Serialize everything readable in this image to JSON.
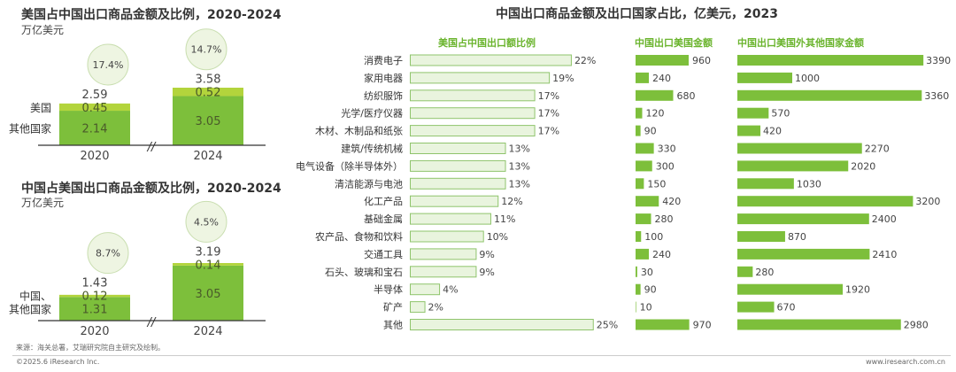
{
  "colors": {
    "main_green": "#7dbf3b",
    "light_green": "#b3d43c",
    "circle_fill": "#eef5e2",
    "circle_stroke": "#c9deb0",
    "ratio_fill": "#e9f4de",
    "ratio_stroke": "#8fc46c",
    "header_green": "#6ab42d"
  },
  "chart_data": [
    {
      "type": "bar",
      "stacked": true,
      "title": "美国占中国出口商品金额及比例，2020-2024",
      "ylabel": "万亿美元",
      "categories": [
        "2020",
        "2024"
      ],
      "series": [
        {
          "name": "其他国家",
          "values": [
            2.14,
            3.05
          ]
        },
        {
          "name": "美国",
          "values": [
            0.45,
            0.52
          ]
        }
      ],
      "totals": [
        "2.59",
        "3.58"
      ],
      "share_labels": [
        "17.4%",
        "14.7%"
      ],
      "axis_break": "//"
    },
    {
      "type": "bar",
      "stacked": true,
      "title": "中国占美国出口商品金额及比例，2020-2024",
      "ylabel": "万亿美元",
      "categories": [
        "2020",
        "2024"
      ],
      "series": [
        {
          "name": "其他国家",
          "values": [
            1.31,
            3.05
          ]
        },
        {
          "name": "中国、",
          "values": [
            0.12,
            0.14
          ]
        }
      ],
      "totals": [
        "1.43",
        "3.19"
      ],
      "share_labels": [
        "8.7%",
        "4.5%"
      ],
      "axis_break": "//"
    },
    {
      "type": "bar",
      "orientation": "horizontal",
      "title": "中国出口商品金额及出口国家占比，亿美元，2023",
      "categories": [
        "消费电子",
        "家用电器",
        "纺织服饰",
        "光学/医疗仪器",
        "木材、木制品和纸张",
        "建筑/传统机械",
        "电气设备（除半导体外）",
        "清洁能源与电池",
        "化工产品",
        "基础金属",
        "农产品、食物和饮料",
        "交通工具",
        "石头、玻璃和宝石",
        "半导体",
        "矿产",
        "其他"
      ],
      "series": [
        {
          "name": "美国占中国出口额比例",
          "unit": "%",
          "values": [
            22,
            19,
            17,
            17,
            17,
            13,
            13,
            13,
            12,
            11,
            10,
            9,
            9,
            4,
            2,
            25
          ]
        },
        {
          "name": "中国出口美国金额",
          "values": [
            960,
            240,
            680,
            120,
            90,
            330,
            300,
            150,
            420,
            280,
            100,
            240,
            30,
            90,
            10,
            970
          ]
        },
        {
          "name": "中国出口美国外其他国家金额",
          "values": [
            3390,
            1000,
            3360,
            570,
            420,
            2270,
            2020,
            1030,
            3200,
            2400,
            870,
            2410,
            280,
            1920,
            670,
            2980
          ]
        }
      ]
    }
  ],
  "footer": {
    "source": "来源：海关总署，艾瑞研究院自主研究及绘制。",
    "copyright": "©2025.6 iResearch Inc.",
    "website": "www.iresearch.com.cn"
  }
}
